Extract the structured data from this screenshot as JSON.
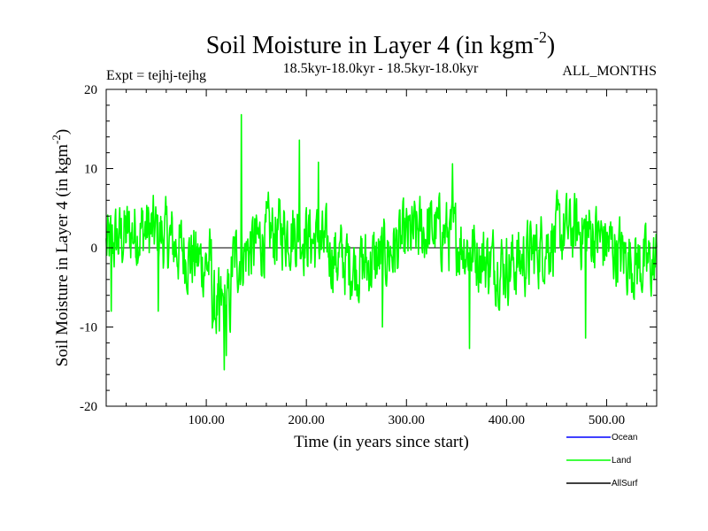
{
  "chart_data": {
    "type": "line",
    "title": "Soil Moisture in Layer 4 (in kgm",
    "title_sup": "-2",
    "title_close": ")",
    "subtitle_left": "Expt = tejhj-tejhg",
    "subtitle_center": "18.5kyr-18.0kyr - 18.5kyr-18.0kyr",
    "subtitle_right": "ALL_MONTHS",
    "xlabel": "Time (in years since start)",
    "ylabel": "Soil Moisture in Layer 4 (in kgm",
    "ylabel_sup": "-2",
    "ylabel_close": ")",
    "xlim": [
      0,
      550
    ],
    "ylim": [
      -20,
      20
    ],
    "xticks": [
      100,
      200,
      300,
      400,
      500
    ],
    "xtick_labels": [
      "100.00",
      "200.00",
      "300.00",
      "400.00",
      "500.00"
    ],
    "yticks": [
      -20,
      -10,
      0,
      10,
      20
    ],
    "ytick_labels": [
      "-20",
      "-10",
      "0",
      "10",
      "20"
    ],
    "grid": false,
    "legend_position": "bottom-right, below plot",
    "series": [
      {
        "name": "Ocean",
        "color": "#0000ff",
        "values": []
      },
      {
        "name": "Land",
        "color": "#00ff00",
        "x_step": 0.5,
        "peaks": [
          [
            135,
            16.8
          ],
          [
            193,
            13.6
          ],
          [
            118,
            -15.4
          ],
          [
            120,
            -13.6
          ],
          [
            113,
            -10.5
          ],
          [
            363,
            -12.7
          ],
          [
            479,
            -11.4
          ],
          [
            346,
            10.6
          ],
          [
            212,
            10.8
          ],
          [
            52,
            -8.0
          ],
          [
            276,
            -10.0
          ],
          [
            5,
            -8.0
          ]
        ],
        "amplitude": 3.8
      },
      {
        "name": "AllSurf",
        "color": "#000000",
        "values": []
      }
    ]
  }
}
